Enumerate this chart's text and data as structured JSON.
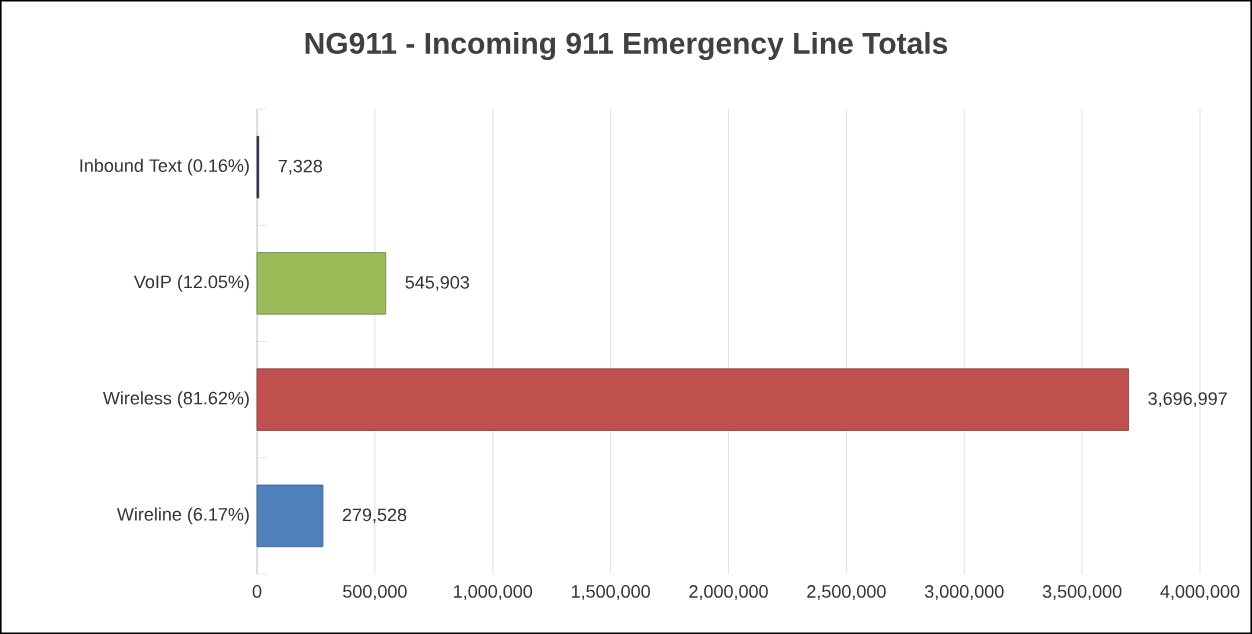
{
  "chart_data": {
    "type": "bar",
    "orientation": "horizontal",
    "title": "NG911 -  Incoming 911 Emergency Line Totals",
    "categories": [
      "Inbound Text (0.16%)",
      "VoIP (12.05%)",
      "Wireless (81.62%)",
      "Wireline (6.17%)"
    ],
    "values": [
      7328,
      545903,
      3696997,
      279528
    ],
    "colors": [
      "#403152",
      "#9bbb59",
      "#c0504d",
      "#4f81bd"
    ],
    "value_labels": [
      "7,328",
      "545,903",
      "3,696,997",
      "279,528"
    ],
    "xlim": [
      0,
      4000000
    ],
    "xticks": [
      0,
      {
        "value": 500000,
        "label": "500,000"
      },
      {
        "value": 1000000,
        "label": "1,000,000"
      },
      {
        "value": 1500000,
        "label": "1,500,000"
      },
      {
        "value": 2000000,
        "label": "2,000,000"
      },
      {
        "value": 2500000,
        "label": "2,500,000"
      },
      {
        "value": 3000000,
        "label": "3,000,000"
      },
      {
        "value": 3500000,
        "label": "3,500,000"
      },
      {
        "value": 4000000,
        "label": "4,000,000"
      }
    ],
    "grid": "x"
  }
}
